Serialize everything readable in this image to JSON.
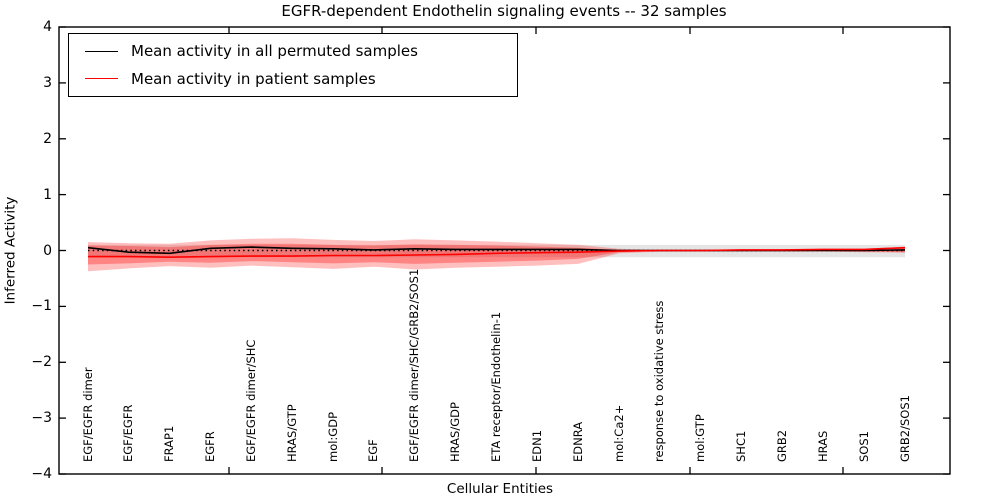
{
  "chart_data": {
    "type": "line",
    "title": "EGFR-dependent Endothelin signaling events -- 32 samples",
    "xlabel": "Cellular Entities",
    "ylabel": "Inferred Activity",
    "ylim": [
      -4,
      4
    ],
    "yticks": [
      4,
      3,
      2,
      1,
      0,
      -1,
      -2,
      -3,
      -4
    ],
    "ytick_labels": [
      "4",
      "3",
      "2",
      "1",
      "0",
      "−1",
      "−2",
      "−3",
      "−4"
    ],
    "grid": false,
    "legend_position": "upper-left",
    "categories": [
      "EGF/EGFR dimer",
      "EGF/EGFR",
      "FRAP1",
      "EGFR",
      "EGF/EGFR dimer/SHC",
      "HRAS/GTP",
      "mol:GDP",
      "EGF",
      "EGF/EGFR dimer/SHC/GRB2/SOS1",
      "HRAS/GDP",
      "ETA receptor/Endothelin-1",
      "EDN1",
      "EDNRA",
      "mol:Ca2+",
      "response to oxidative stress",
      "mol:GTP",
      "SHC1",
      "GRB2",
      "HRAS",
      "SOS1",
      "GRB2/SOS1"
    ],
    "series": [
      {
        "name": "Mean activity in all permuted samples",
        "color": "#000000",
        "style": "solid",
        "values": [
          0.05,
          -0.03,
          -0.05,
          0.04,
          0.06,
          0.04,
          0.03,
          0.01,
          0.03,
          0.02,
          0.02,
          0.02,
          0.02,
          0.0,
          0.0,
          0.0,
          0.0,
          0.0,
          0.0,
          0.0,
          0.01
        ]
      },
      {
        "name": "Mean activity in patient samples",
        "color": "#ff0000",
        "style": "solid",
        "values": [
          -0.11,
          -0.11,
          -0.12,
          -0.11,
          -0.1,
          -0.1,
          -0.09,
          -0.09,
          -0.08,
          -0.07,
          -0.05,
          -0.04,
          -0.03,
          -0.01,
          0.0,
          0.0,
          0.01,
          0.01,
          0.02,
          0.02,
          0.05
        ]
      },
      {
        "name": "zero reference",
        "color": "#000000",
        "style": "dotted",
        "values": [
          0,
          0,
          0,
          0,
          0,
          0,
          0,
          0,
          0,
          0,
          0,
          0,
          0,
          0,
          0,
          0,
          0,
          0,
          0,
          0,
          0
        ]
      }
    ],
    "bands": [
      {
        "name": "permuted samples spread",
        "color": "rgba(0,0,0,0.10)",
        "upper": [
          0.1,
          0.1,
          0.1,
          0.1,
          0.1,
          0.1,
          0.1,
          0.1,
          0.1,
          0.1,
          0.1,
          0.1,
          0.1,
          0.1,
          0.1,
          0.1,
          0.1,
          0.1,
          0.1,
          0.1,
          0.1
        ],
        "lower": [
          -0.12,
          -0.12,
          -0.12,
          -0.12,
          -0.12,
          -0.12,
          -0.12,
          -0.12,
          -0.12,
          -0.12,
          -0.12,
          -0.12,
          -0.12,
          -0.12,
          -0.12,
          -0.12,
          -0.12,
          -0.12,
          -0.12,
          -0.12,
          -0.12
        ]
      },
      {
        "name": "patient samples outer spread",
        "color": "rgba(255,0,0,0.25)",
        "upper": [
          0.15,
          0.13,
          0.12,
          0.18,
          0.21,
          0.22,
          0.19,
          0.17,
          0.2,
          0.18,
          0.16,
          0.13,
          0.1,
          0.03,
          0.01,
          0.01,
          0.02,
          0.02,
          0.02,
          0.03,
          0.07
        ],
        "lower": [
          -0.37,
          -0.32,
          -0.28,
          -0.31,
          -0.27,
          -0.3,
          -0.33,
          -0.29,
          -0.34,
          -0.31,
          -0.29,
          -0.27,
          -0.24,
          -0.05,
          -0.02,
          -0.02,
          -0.02,
          -0.02,
          -0.02,
          -0.03,
          -0.04
        ]
      },
      {
        "name": "patient samples inner spread",
        "color": "rgba(255,0,0,0.30)",
        "upper": [
          0.09,
          0.08,
          0.06,
          0.1,
          0.12,
          0.12,
          0.1,
          0.09,
          0.11,
          0.1,
          0.09,
          0.07,
          0.05,
          0.01,
          0.0,
          0.0,
          0.01,
          0.01,
          0.01,
          0.02,
          0.05
        ],
        "lower": [
          -0.25,
          -0.23,
          -0.2,
          -0.22,
          -0.19,
          -0.21,
          -0.23,
          -0.21,
          -0.24,
          -0.22,
          -0.2,
          -0.18,
          -0.15,
          -0.03,
          -0.01,
          -0.01,
          -0.01,
          -0.01,
          -0.01,
          -0.02,
          -0.03
        ]
      }
    ]
  },
  "legend": {
    "entries": [
      {
        "label": "Mean activity in all permuted samples",
        "color": "#000000"
      },
      {
        "label": "Mean activity in patient samples",
        "color": "#ff0000"
      }
    ]
  }
}
